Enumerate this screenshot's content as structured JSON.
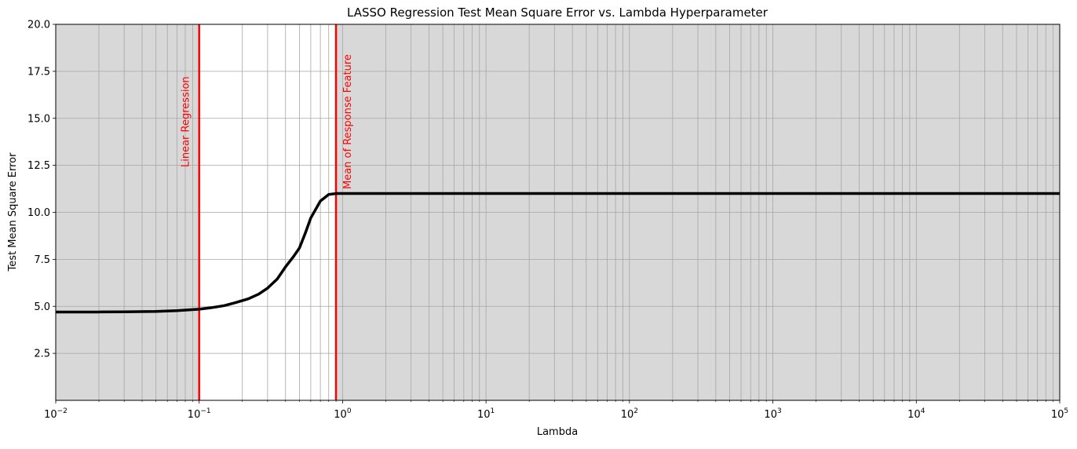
{
  "chart_data": {
    "type": "line",
    "title": "LASSO Regression Test Mean Square Error vs. Lambda Hyperparameter",
    "xlabel": "Lambda",
    "ylabel": "Test Mean Square Error",
    "xscale": "log",
    "xlim": [
      0.01,
      100000
    ],
    "ylim": [
      0,
      20
    ],
    "grid": true,
    "grid_which": "both",
    "x_ticks": [
      {
        "value": 0.01,
        "base": "10",
        "exp": "−2"
      },
      {
        "value": 0.1,
        "base": "10",
        "exp": "−1"
      },
      {
        "value": 1,
        "base": "10",
        "exp": "0"
      },
      {
        "value": 10,
        "base": "10",
        "exp": "1"
      },
      {
        "value": 100,
        "base": "10",
        "exp": "2"
      },
      {
        "value": 1000,
        "base": "10",
        "exp": "3"
      },
      {
        "value": 10000,
        "base": "10",
        "exp": "4"
      },
      {
        "value": 100000,
        "base": "10",
        "exp": "5"
      }
    ],
    "y_ticks": [
      {
        "value": 2.5,
        "label": "2.5"
      },
      {
        "value": 5.0,
        "label": "5.0"
      },
      {
        "value": 7.5,
        "label": "7.5"
      },
      {
        "value": 10.0,
        "label": "10.0"
      },
      {
        "value": 12.5,
        "label": "12.5"
      },
      {
        "value": 15.0,
        "label": "15.0"
      },
      {
        "value": 17.5,
        "label": "17.5"
      },
      {
        "value": 20.0,
        "label": "20.0"
      }
    ],
    "shaded_regions": [
      {
        "x0": 0.01,
        "x1": 0.1,
        "color": "#d8d8d8"
      },
      {
        "x0": 0.9,
        "x1": 100000,
        "color": "#d8d8d8"
      }
    ],
    "vertical_lines": [
      {
        "x": 0.1,
        "label": "Linear Regression",
        "color": "#ff0000",
        "label_side": "left"
      },
      {
        "x": 0.9,
        "label": "Mean of Response Feature",
        "color": "#ff0000",
        "label_side": "right"
      }
    ],
    "series": [
      {
        "color": "#000000",
        "x": [
          0.01,
          0.02,
          0.03,
          0.05,
          0.07,
          0.1,
          0.12,
          0.15,
          0.18,
          0.22,
          0.26,
          0.3,
          0.35,
          0.4,
          0.45,
          0.5,
          0.55,
          0.6,
          0.7,
          0.8,
          0.9,
          1,
          10,
          100,
          1000,
          10000,
          100000
        ],
        "y": [
          4.7,
          4.7,
          4.71,
          4.73,
          4.77,
          4.85,
          4.92,
          5.04,
          5.2,
          5.4,
          5.65,
          5.97,
          6.45,
          7.1,
          7.6,
          8.1,
          8.9,
          9.7,
          10.6,
          10.95,
          11.0,
          11.0,
          11.0,
          11.0,
          11.0,
          11.0,
          11.0
        ]
      }
    ]
  }
}
